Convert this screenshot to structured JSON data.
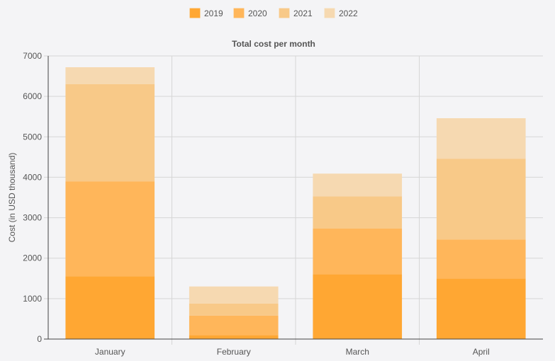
{
  "chart_data": {
    "type": "bar",
    "stacked": true,
    "title": "Total cost per month",
    "xlabel": "",
    "ylabel": "Cost (in USD thousand)",
    "ylim": [
      0,
      7000
    ],
    "yticks": [
      "0",
      "1000",
      "2000",
      "3000",
      "4000",
      "5000",
      "6000",
      "7000"
    ],
    "categories": [
      "January",
      "February",
      "March",
      "April"
    ],
    "grid": true,
    "legend_position": "top-center",
    "series": [
      {
        "name": "2019",
        "color": "#ffa733",
        "values": [
          1550,
          100,
          1600,
          1500
        ]
      },
      {
        "name": "2020",
        "color": "#ffb65a",
        "values": [
          2350,
          480,
          1130,
          960
        ]
      },
      {
        "name": "2021",
        "color": "#f8c988",
        "values": [
          2400,
          300,
          800,
          2000
        ]
      },
      {
        "name": "2022",
        "color": "#f6d9b1",
        "values": [
          420,
          420,
          560,
          1000
        ]
      }
    ]
  }
}
